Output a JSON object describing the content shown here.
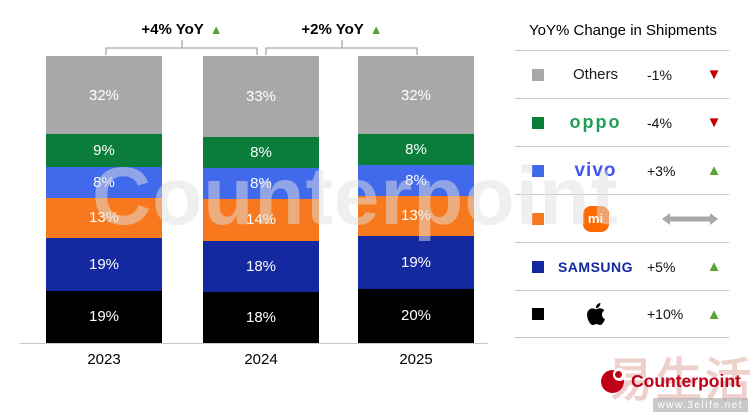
{
  "chart_data": {
    "type": "bar",
    "stacked": true,
    "categories": [
      "2023",
      "2024",
      "2025"
    ],
    "series": [
      {
        "name": "Others",
        "color": "#a8a8a8",
        "values": [
          32,
          33,
          32
        ]
      },
      {
        "name": "OPPO",
        "color": "#0a7d3a",
        "values": [
          9,
          8,
          8
        ]
      },
      {
        "name": "vivo",
        "color": "#4169ec",
        "values": [
          8,
          8,
          8
        ]
      },
      {
        "name": "Xiaomi",
        "color": "#f8791d",
        "values": [
          13,
          14,
          13
        ]
      },
      {
        "name": "Samsung",
        "color": "#1428a0",
        "values": [
          19,
          18,
          19
        ]
      },
      {
        "name": "Apple",
        "color": "#000000",
        "values": [
          19,
          18,
          20
        ]
      }
    ],
    "value_suffix": "%",
    "ylim": [
      0,
      100
    ],
    "legend_position": "right",
    "growth_annotations": [
      {
        "label": "+4% YoY",
        "direction": "up",
        "between": [
          "2023",
          "2024"
        ]
      },
      {
        "label": "+2% YoY",
        "direction": "up",
        "between": [
          "2024",
          "2025"
        ]
      }
    ]
  },
  "legend": {
    "title": "YoY% Change in Shipments",
    "up_color": "#55a630",
    "down_color": "#c00000",
    "rows": [
      {
        "brand": "Others",
        "brand_color": "#1a1a1a",
        "change": "-1%",
        "direction": "down"
      },
      {
        "brand": "oppo",
        "brand_color": "#1e9e57",
        "change": "-4%",
        "direction": "down"
      },
      {
        "brand": "vivo",
        "brand_color": "#4257e8",
        "change": "+3%",
        "direction": "up"
      },
      {
        "brand": "mi",
        "brand_color": "#ff6900",
        "change": "",
        "direction": "flat"
      },
      {
        "brand": "SAMSUNG",
        "brand_color": "#1428a0",
        "change": "+5%",
        "direction": "up"
      },
      {
        "brand": "Apple",
        "brand_color": "#000000",
        "change": "+10%",
        "direction": "up"
      }
    ]
  },
  "footer": {
    "logo_text": "Counterpoint",
    "brand_color": "#c00018"
  },
  "watermarks": {
    "center": "Counterpoint",
    "site_name": "易生活",
    "site_url": "www.3elife.net"
  }
}
